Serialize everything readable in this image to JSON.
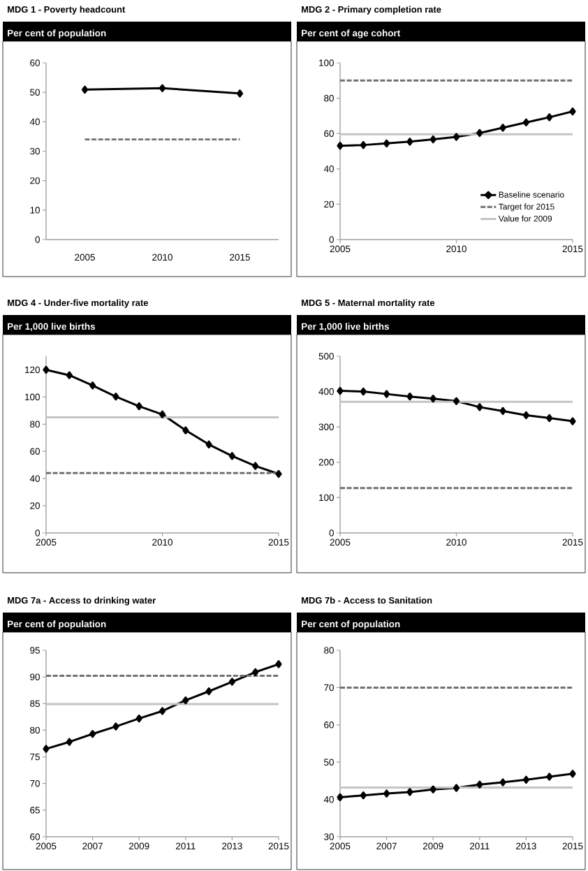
{
  "chart_data": [
    {
      "type": "line",
      "title": "MDG 1 - Poverty headcount",
      "subtitle": "Per cent of population",
      "categories": [
        "2005",
        "2010",
        "2015"
      ],
      "ylim": [
        0,
        60
      ],
      "yticks": [
        0,
        10,
        20,
        30,
        40,
        50,
        60
      ],
      "series": [
        {
          "color": "#000000",
          "marker": "diamond",
          "line_style": "solid",
          "values": [
            50.9,
            51.4,
            49.6
          ]
        },
        {
          "color": "#707070",
          "marker": "none",
          "line_style": "dashed",
          "values": [
            34,
            34,
            34
          ]
        }
      ]
    },
    {
      "type": "line",
      "title": "MDG 2 - Primary completion rate",
      "subtitle": "Per cent of age cohort",
      "x": [
        2005,
        2006,
        2007,
        2008,
        2009,
        2010,
        2011,
        2012,
        2013,
        2014,
        2015
      ],
      "xlim": [
        2005,
        2015
      ],
      "xticks": [
        2005,
        2010,
        2015
      ],
      "ylim": [
        0,
        100
      ],
      "yticks": [
        0,
        20,
        40,
        60,
        80,
        100
      ],
      "legend": "bottom right",
      "series": [
        {
          "name": "Baseline scenario",
          "color": "#000000",
          "marker": "diamond",
          "line_style": "solid",
          "values": [
            53.1,
            53.5,
            54.4,
            55.4,
            56.7,
            58.1,
            60.3,
            63.3,
            66.3,
            69.2,
            72.5
          ]
        }
      ],
      "ref_lines": [
        {
          "axis": "y",
          "value": 90,
          "label": "Target for 2015",
          "color": "#707070",
          "line_style": "dashed"
        },
        {
          "axis": "y",
          "value": 59.6,
          "label": "Value for 2009",
          "color": "#c4c4c4",
          "line_style": "solid"
        }
      ]
    },
    {
      "type": "line",
      "title": "MDG 4 - Under-five mortality rate",
      "subtitle": "Per 1,000 live births",
      "x": [
        2005,
        2006,
        2007,
        2008,
        2009,
        2010,
        2011,
        2012,
        2013,
        2014,
        2015
      ],
      "xlim": [
        2005,
        2015
      ],
      "xticks": [
        2005,
        2010,
        2015
      ],
      "ylim": [
        0,
        130
      ],
      "yticks": [
        0,
        20,
        40,
        60,
        80,
        100,
        120
      ],
      "series": [
        {
          "color": "#000000",
          "marker": "diamond",
          "line_style": "solid",
          "values": [
            120,
            116,
            108.5,
            100.3,
            93.2,
            87.2,
            75.5,
            65.1,
            56.6,
            49.3,
            43.4
          ]
        }
      ],
      "ref_lines": [
        {
          "axis": "y",
          "value": 44,
          "color": "#707070",
          "line_style": "dashed"
        },
        {
          "axis": "y",
          "value": 85,
          "color": "#c4c4c4",
          "line_style": "solid"
        }
      ]
    },
    {
      "type": "line",
      "title": "MDG 5 - Maternal mortality rate",
      "subtitle": "Per 1,000 live births",
      "x": [
        2005,
        2006,
        2007,
        2008,
        2009,
        2010,
        2011,
        2012,
        2013,
        2014,
        2015
      ],
      "xlim": [
        2005,
        2015
      ],
      "xticks": [
        2005,
        2010,
        2015
      ],
      "ylim": [
        0,
        500
      ],
      "yticks": [
        0,
        100,
        200,
        300,
        400,
        500
      ],
      "series": [
        {
          "color": "#000000",
          "marker": "diamond",
          "line_style": "solid",
          "values": [
            402,
            400,
            393,
            386,
            380,
            373,
            356,
            345,
            333,
            325,
            316
          ]
        }
      ],
      "ref_lines": [
        {
          "axis": "y",
          "value": 127,
          "color": "#707070",
          "line_style": "dashed"
        },
        {
          "axis": "y",
          "value": 371,
          "color": "#c4c4c4",
          "line_style": "solid"
        }
      ]
    },
    {
      "type": "line",
      "title": "MDG 7a - Access to drinking water",
      "subtitle": "Per cent of population",
      "x": [
        2005,
        2006,
        2007,
        2008,
        2009,
        2010,
        2011,
        2012,
        2013,
        2014,
        2015
      ],
      "xlim": [
        2005,
        2015
      ],
      "xticks": [
        2005,
        2007,
        2009,
        2011,
        2013,
        2015
      ],
      "ylim": [
        60,
        95
      ],
      "yticks": [
        60,
        65,
        70,
        75,
        80,
        85,
        90,
        95
      ],
      "series": [
        {
          "color": "#000000",
          "marker": "diamond",
          "line_style": "solid",
          "values": [
            76.5,
            77.8,
            79.3,
            80.7,
            82.2,
            83.6,
            85.6,
            87.3,
            89.1,
            90.9,
            92.4
          ]
        }
      ],
      "ref_lines": [
        {
          "axis": "y",
          "value": 90.2,
          "color": "#707070",
          "line_style": "dashed"
        },
        {
          "axis": "y",
          "value": 84.9,
          "color": "#c4c4c4",
          "line_style": "solid"
        }
      ]
    },
    {
      "type": "line",
      "title": "MDG 7b - Access to Sanitation",
      "subtitle": "Per cent of population",
      "x": [
        2005,
        2006,
        2007,
        2008,
        2009,
        2010,
        2011,
        2012,
        2013,
        2014,
        2015
      ],
      "xlim": [
        2005,
        2015
      ],
      "xticks": [
        2005,
        2007,
        2009,
        2011,
        2013,
        2015
      ],
      "ylim": [
        30,
        80
      ],
      "yticks": [
        30,
        40,
        50,
        60,
        70,
        80
      ],
      "series": [
        {
          "color": "#000000",
          "marker": "diamond",
          "line_style": "solid",
          "values": [
            40.6,
            41.1,
            41.6,
            42.0,
            42.7,
            43.1,
            44.0,
            44.6,
            45.3,
            46.1,
            46.9
          ]
        }
      ],
      "ref_lines": [
        {
          "axis": "y",
          "value": 70,
          "color": "#707070",
          "line_style": "dashed"
        },
        {
          "axis": "y",
          "value": 43.2,
          "color": "#c4c4c4",
          "line_style": "solid"
        }
      ]
    }
  ]
}
